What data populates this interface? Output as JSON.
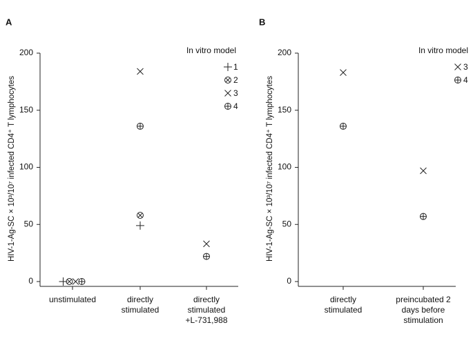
{
  "chart_data": [
    {
      "type": "scatter",
      "panel": "A",
      "y_label": "HIV-1-Ag-SC × 10³/10⁷ infected CD4⁺ T lymphocytes",
      "categories": [
        "unstimulated",
        "directly stimulated",
        "directly stimulated +L-731,988"
      ],
      "legend_title": "In vitro model",
      "series": [
        {
          "name": "1",
          "marker": "plus",
          "color": "#222",
          "values": [
            0,
            49,
            null
          ]
        },
        {
          "name": "2",
          "marker": "circle-x",
          "color": "#222",
          "values": [
            0,
            58,
            null
          ]
        },
        {
          "name": "3",
          "marker": "x",
          "color": "#222",
          "values": [
            0,
            184,
            33
          ]
        },
        {
          "name": "4",
          "marker": "circle-plus",
          "color": "#222",
          "values": [
            0,
            136,
            22
          ]
        }
      ],
      "ylim": [
        0,
        200
      ],
      "yticks": [
        0,
        50,
        100,
        150,
        200
      ]
    },
    {
      "type": "scatter",
      "panel": "B",
      "y_label": "HIV-1-Ag-SC × 10³/10⁷ infected CD4⁺ T lymphocytes",
      "categories": [
        "directly stimulated",
        "preincubated 2 days before stimulation"
      ],
      "legend_title": "In vitro model",
      "series": [
        {
          "name": "3",
          "marker": "x",
          "color": "#222",
          "values": [
            183,
            97
          ]
        },
        {
          "name": "4",
          "marker": "circle-plus",
          "color": "#222",
          "values": [
            136,
            57
          ]
        }
      ],
      "ylim": [
        0,
        200
      ],
      "yticks": [
        0,
        50,
        100,
        150,
        200
      ]
    }
  ]
}
